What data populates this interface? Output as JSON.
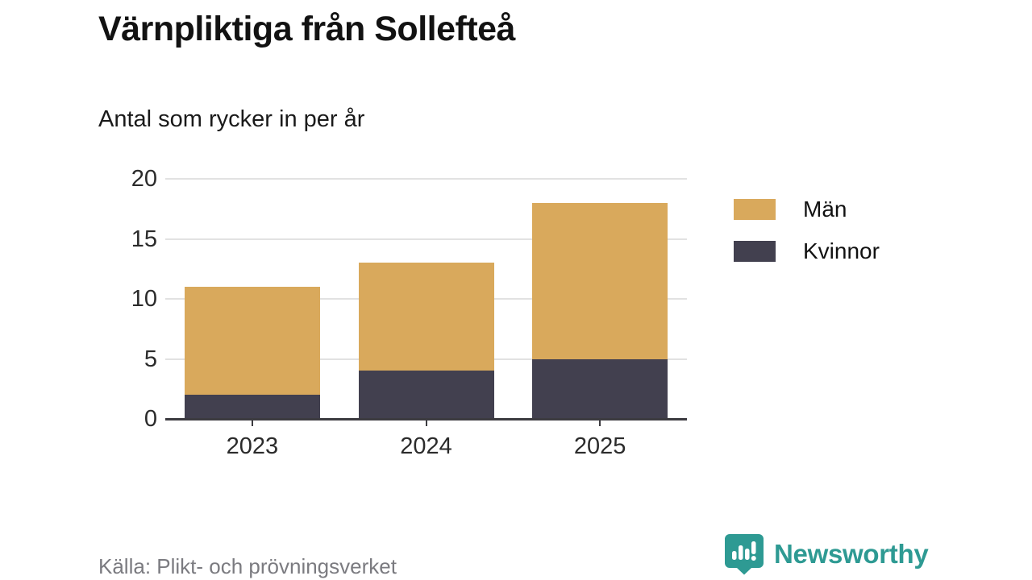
{
  "header": {
    "title": "Värnpliktiga från Sollefteå",
    "subtitle": "Antal som rycker in per år"
  },
  "chart_data": {
    "type": "bar",
    "stacked": true,
    "categories": [
      "2023",
      "2024",
      "2025"
    ],
    "series": [
      {
        "name": "Män",
        "values": [
          9,
          9,
          13
        ],
        "color": "#d9a95c"
      },
      {
        "name": "Kvinnor",
        "values": [
          2,
          4,
          5
        ],
        "color": "#42404f"
      }
    ],
    "stack_bottom_to_top": [
      "Kvinnor",
      "Män"
    ],
    "totals": [
      11,
      13,
      18
    ],
    "title": "Värnpliktiga från Sollefteå",
    "subtitle": "Antal som rycker in per år",
    "xlabel": "",
    "ylabel": "",
    "ylim": [
      0,
      20
    ],
    "yticks": [
      0,
      5,
      10,
      15,
      20
    ],
    "grid": true,
    "legend_position": "right"
  },
  "colors": {
    "gridline": "#e2e2e2",
    "axis": "#3c3b40",
    "tick": "#3c3b40",
    "brand_teal": "#2e9a93"
  },
  "footer": {
    "source": "Källa: Plikt- och prövningsverket",
    "brand": "Newsworthy"
  }
}
